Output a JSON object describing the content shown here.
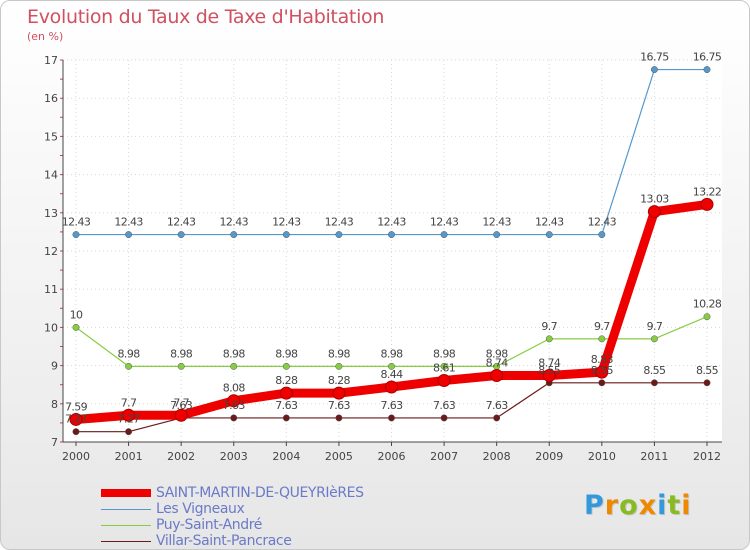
{
  "chart_data": {
    "type": "line",
    "title": "Evolution du Taux de Taxe d'Habitation",
    "subtitle": "(en %)",
    "x": [
      "2000",
      "2001",
      "2002",
      "2003",
      "2004",
      "2005",
      "2006",
      "2007",
      "2008",
      "2009",
      "2010",
      "2011",
      "2012"
    ],
    "ylim": [
      7,
      17
    ],
    "yticks": [
      "7",
      "8",
      "9",
      "10",
      "11",
      "12",
      "13",
      "14",
      "15",
      "16",
      "17"
    ],
    "series": [
      {
        "name": "Villar-Saint-Pancrace",
        "color": "#6b1a1a",
        "values": [
          7.27,
          7.27,
          7.63,
          7.63,
          7.63,
          7.63,
          7.63,
          7.63,
          7.63,
          8.55,
          8.55,
          8.55,
          8.55
        ],
        "labels": [
          "7.27",
          "7.27",
          "7.63",
          "7.63",
          "7.63",
          "7.63",
          "7.63",
          "7.63",
          "7.63",
          "8.55",
          "8.55",
          "8.55",
          "8.55"
        ]
      },
      {
        "name": "Puy-Saint-André",
        "color": "#88cc44",
        "values": [
          10,
          8.98,
          8.98,
          8.98,
          8.98,
          8.98,
          8.98,
          8.98,
          8.98,
          9.7,
          9.7,
          9.7,
          10.28
        ],
        "labels": [
          "10",
          "8.98",
          "8.98",
          "8.98",
          "8.98",
          "8.98",
          "8.98",
          "8.98",
          "8.98",
          "9.7",
          "9.7",
          "9.7",
          "10.28"
        ]
      },
      {
        "name": "Les Vigneaux",
        "color": "#5599cc",
        "values": [
          12.43,
          12.43,
          12.43,
          12.43,
          12.43,
          12.43,
          12.43,
          12.43,
          12.43,
          12.43,
          12.43,
          16.75,
          16.75
        ],
        "labels": [
          "12.43",
          "12.43",
          "12.43",
          "12.43",
          "12.43",
          "12.43",
          "12.43",
          "12.43",
          "12.43",
          "12.43",
          "12.43",
          "16.75",
          "16.75"
        ]
      },
      {
        "name": "SAINT-MARTIN-DE-QUEYRIèRES",
        "color": "#ee0000",
        "values": [
          7.59,
          7.7,
          7.7,
          8.08,
          8.28,
          8.28,
          8.44,
          8.61,
          8.74,
          8.74,
          8.83,
          13.03,
          13.22
        ],
        "labels": [
          "7.59",
          "7.7",
          "7.7",
          "8.08",
          "8.28",
          "8.28",
          "8.44",
          "8.61",
          "8.74",
          "8.74",
          "8.83",
          "13.03",
          "13.22"
        ]
      }
    ],
    "legend": [
      "SAINT-MARTIN-DE-QUEYRIèRES",
      "Les Vigneaux",
      "Puy-Saint-André",
      "Villar-Saint-Pancrace"
    ]
  },
  "logo": {
    "letters": [
      "P",
      "r",
      "o",
      "x",
      "i",
      "t",
      "i"
    ],
    "colors": [
      "#3399dd",
      "#ee8800",
      "#88bb22",
      "#ee8800",
      "#3399dd",
      "#88bb22",
      "#ee8800"
    ]
  }
}
